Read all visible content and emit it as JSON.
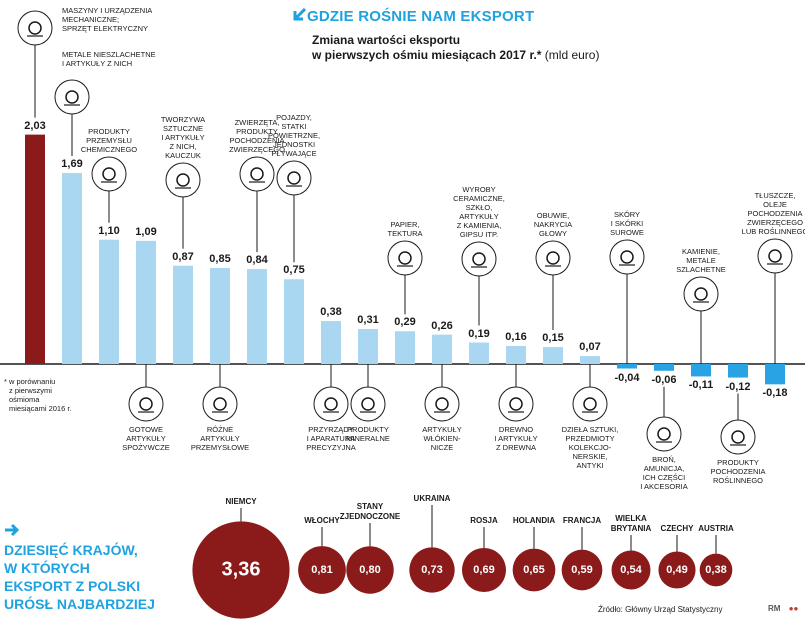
{
  "header": {
    "title": "GDZIE ROŚNIE NAM EKSPORT",
    "subtitle_line1": "Zmiana wartości eksportu",
    "subtitle_line2": "w pierwszych ośmiu miesiącach 2017 r.*",
    "unit": "(mld euro)"
  },
  "footnote": [
    "* w porównaniu",
    "z pierwszymi",
    "ośmioma",
    "miesiącami 2016 r."
  ],
  "left_title": [
    "DZIESIĘĆ KRAJÓW,",
    "W KTÓRYCH",
    "EKSPORT Z POLSKI",
    "URÓSŁ NAJBARDZIEJ"
  ],
  "source": "Źródło: Główny Urząd Statystyczny",
  "signature": "RM",
  "colors": {
    "accent": "#1ea3e0",
    "highlight": "#8b1a1a",
    "bar": "#a9d7f2",
    "negative": "#29a3e3",
    "circle": "#8b1a1a"
  },
  "chart_data": [
    {
      "type": "bar",
      "categories": [
        [
          "MASZYNY I URZĄDZENIA",
          "MECHANICZNE;",
          "SPRZĘT ELEKTRYCZNY"
        ],
        [
          "METALE NIESZLACHETNE",
          "I ARTYKUŁY Z NICH"
        ],
        [
          "PRODUKTY",
          "PRZEMYSŁU",
          "CHEMICZNEGO"
        ],
        [
          "GOTOWE",
          "ARTYKUŁY",
          "SPOŻYWCZE"
        ],
        [
          "TWORZYWA",
          "SZTUCZNE",
          "I ARTYKUŁY",
          "Z NICH,",
          "KAUCZUK"
        ],
        [
          "RÓŻNE",
          "ARTYKUŁY",
          "PRZEMYSŁOWE"
        ],
        [
          "ZWIERZĘTA,",
          "PRODUKTY",
          "POCHODZENIA",
          "ZWIERZĘCEGO"
        ],
        [
          "POJAZDY,",
          "STATKI",
          "POWIETRZNE,",
          "JEDNOSTKI",
          "PŁYWAJĄCE"
        ],
        [
          "PRZYRZĄDY",
          "I APARATURA",
          "PRECYZYJNA"
        ],
        [
          "PRODUKTY",
          "MINERALNE"
        ],
        [
          "PAPIER,",
          "TEKTURA"
        ],
        [
          "ARTYKUŁY",
          "WŁÓKIEN-",
          "NICZE"
        ],
        [
          "WYROBY",
          "CERAMICZNE,",
          "SZKŁO,",
          "ARTYKUŁY",
          "Z KAMIENIA,",
          "GIPSU ITP."
        ],
        [
          "DREWNO",
          "I ARTYKUŁY",
          "Z DREWNA"
        ],
        [
          "OBUWIE,",
          "NAKRYCIA",
          "GŁOWY"
        ],
        [
          "DZIEŁA SZTUKI,",
          "PRZEDMIOTY",
          "KOLEKCJO-",
          "NERSKIE,",
          "ANTYKI"
        ],
        [
          "SKÓRY",
          "I SKÓRKI",
          "SUROWE"
        ],
        [
          "BROŃ,",
          "AMUNICJA,",
          "ICH CZĘŚCI",
          "I AKCESORIA"
        ],
        [
          "KAMIENIE,",
          "METALE",
          "SZLACHETNE"
        ],
        [
          "PRODUKTY",
          "POCHODZENIA",
          "ROŚLINNEGO"
        ],
        [
          "TŁUSZCZE,",
          "OLEJE",
          "POCHODZENIA",
          "ZWIERZĘCEGO",
          "LUB ROŚLINNEGO"
        ]
      ],
      "values": [
        2.03,
        1.69,
        1.1,
        1.09,
        0.87,
        0.85,
        0.84,
        0.75,
        0.38,
        0.31,
        0.29,
        0.26,
        0.19,
        0.16,
        0.15,
        0.07,
        -0.04,
        -0.06,
        -0.11,
        -0.12,
        -0.18
      ],
      "value_labels": [
        "2,03",
        "1,69",
        "1,10",
        "1,09",
        "0,87",
        "0,85",
        "0,84",
        "0,75",
        "0,38",
        "0,31",
        "0,29",
        "0,26",
        "0,19",
        "0,16",
        "0,15",
        "0,07",
        "-0,04",
        "-0,06",
        "-0,11",
        "-0,12",
        "-0,18"
      ],
      "icons": [
        "gear-icon",
        "metal-bars-icon",
        "flask-icon",
        "croissant-icon",
        "coil-icon",
        "canister-icon",
        "chicken-icon",
        "sailboat-icon",
        "microscope-icon",
        "mineral-pile-icon",
        "paper-roll-icon",
        "tank-top-icon",
        "tile-icon",
        "radiator-icon",
        "shoe-icon",
        "certificate-icon",
        "hide-icon",
        "pistol-icon",
        "gem-bars-icon",
        "jar-icon",
        "olive-icon"
      ],
      "label_side": [
        "top",
        "top",
        "top",
        "bottom",
        "top",
        "bottom",
        "top",
        "top",
        "bottom",
        "bottom",
        "top",
        "bottom",
        "top",
        "bottom",
        "top",
        "bottom",
        "top",
        "bottom",
        "top",
        "bottom",
        "top"
      ],
      "ylim": [
        -0.18,
        2.03
      ]
    },
    {
      "type": "bubble",
      "categories": [
        "NIEMCY",
        "WŁOCHY",
        "STANY ZJEDNOCZONE",
        "UKRAINA",
        "ROSJA",
        "HOLANDIA",
        "FRANCJA",
        "WIELKA BRYTANIA",
        "CZECHY",
        "AUSTRIA"
      ],
      "category_lines": [
        [
          "NIEMCY"
        ],
        [
          "WŁOCHY"
        ],
        [
          "STANY",
          "ZJEDNOCZONE"
        ],
        [
          "UKRAINA"
        ],
        [
          "ROSJA"
        ],
        [
          "HOLANDIA"
        ],
        [
          "FRANCJA"
        ],
        [
          "WIELKA",
          "BRYTANIA"
        ],
        [
          "CZECHY"
        ],
        [
          "AUSTRIA"
        ]
      ],
      "values": [
        3.36,
        0.81,
        0.8,
        0.73,
        0.69,
        0.65,
        0.59,
        0.54,
        0.49,
        0.38
      ],
      "value_labels": [
        "3,36",
        "0,81",
        "0,80",
        "0,73",
        "0,69",
        "0,65",
        "0,59",
        "0,54",
        "0,49",
        "0,38"
      ]
    }
  ]
}
